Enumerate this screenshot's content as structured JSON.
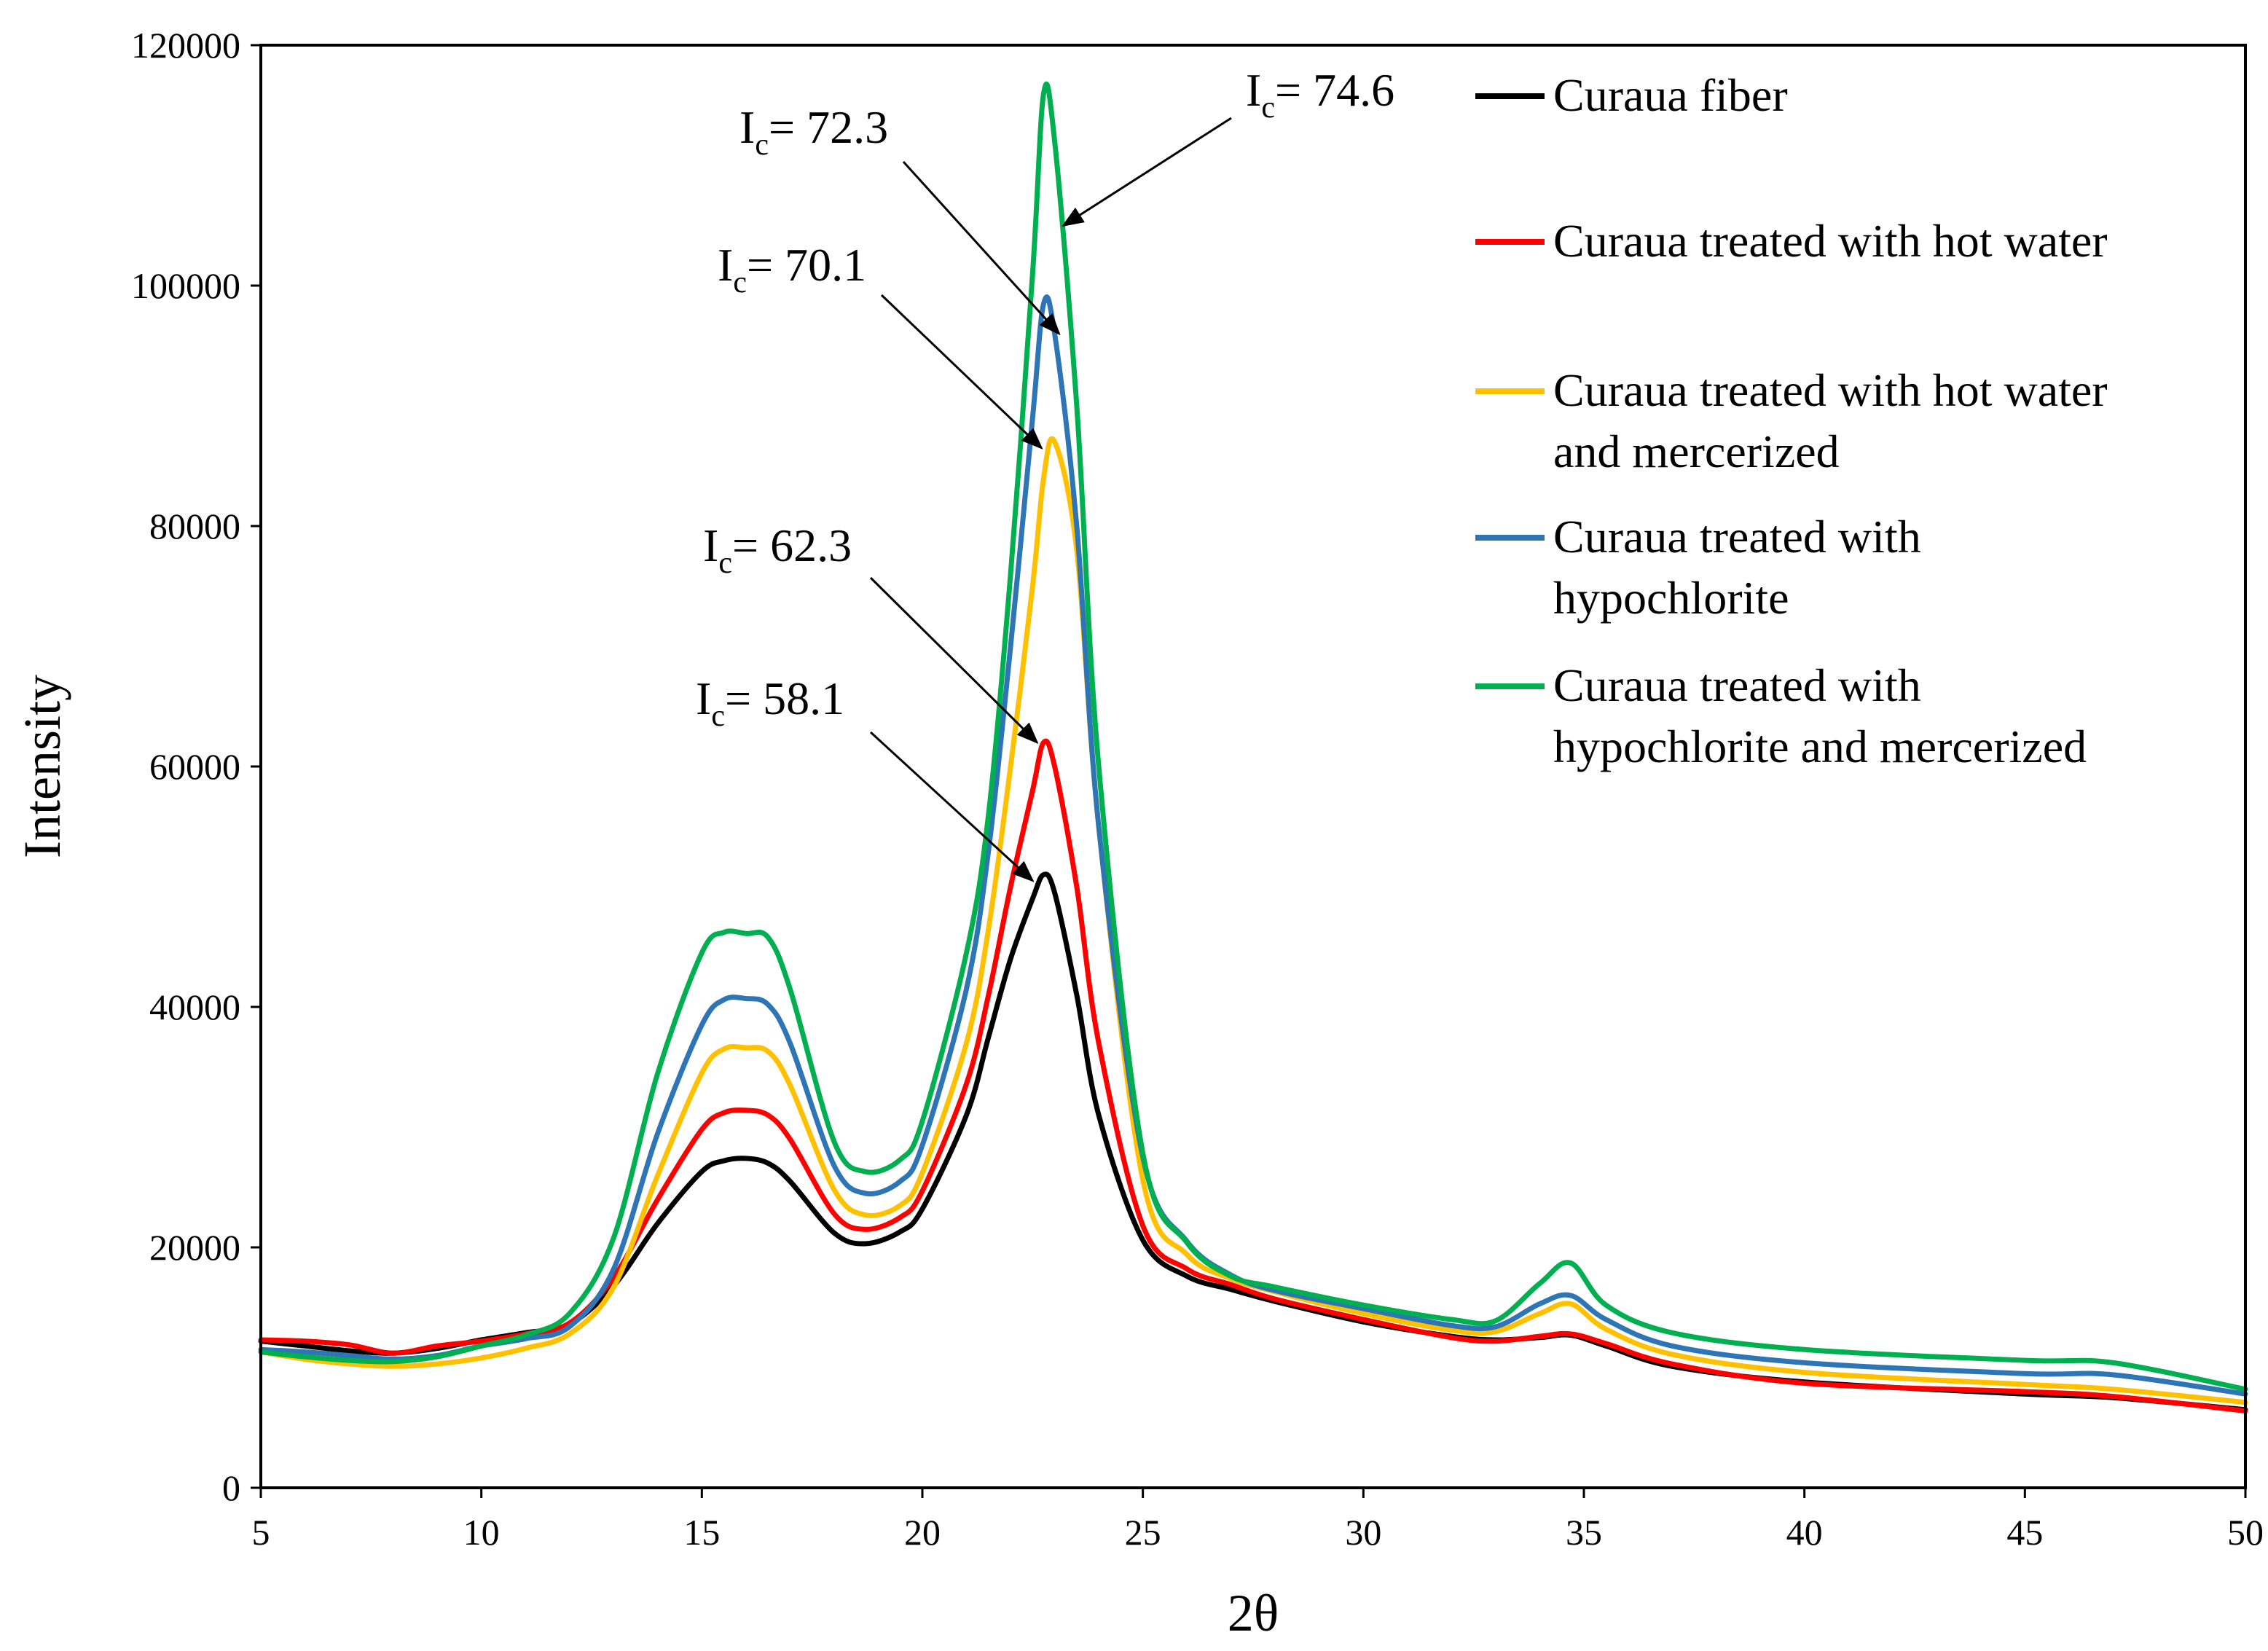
{
  "chart_data": {
    "type": "line",
    "title": "",
    "xlabel": "2θ",
    "ylabel": "Intensity",
    "xlim": [
      5,
      50
    ],
    "ylim": [
      0,
      120000
    ],
    "xticks": [
      5,
      10,
      15,
      20,
      25,
      30,
      35,
      40,
      45,
      50
    ],
    "yticks": [
      0,
      20000,
      40000,
      60000,
      80000,
      100000,
      120000
    ],
    "x": [
      5,
      6,
      7,
      8,
      9,
      10,
      11,
      12,
      13,
      14,
      15,
      15.5,
      16,
      16.5,
      17,
      18,
      18.7,
      19.5,
      20,
      21,
      21.5,
      22,
      22.5,
      22.75,
      23,
      23.5,
      24,
      25,
      26,
      27,
      28,
      30,
      32,
      33,
      34,
      34.7,
      35.5,
      37,
      40,
      45,
      47,
      50
    ],
    "series": [
      {
        "name": "Curaua fiber",
        "color": "#000000",
        "values": [
          12200,
          11800,
          11400,
          11200,
          11600,
          12300,
          12900,
          13600,
          16800,
          22000,
          26300,
          27200,
          27400,
          27000,
          25500,
          21200,
          20300,
          21300,
          23200,
          31000,
          37500,
          44000,
          49000,
          51000,
          49500,
          41000,
          31000,
          20600,
          17600,
          16500,
          15500,
          13800,
          12600,
          12300,
          12500,
          12700,
          11800,
          10100,
          8800,
          7800,
          7500,
          6500
        ]
      },
      {
        "name": "Curaua treated with hot water",
        "color": "#ff0000",
        "values": [
          12300,
          12200,
          11900,
          11200,
          11800,
          12200,
          12800,
          13700,
          17500,
          24000,
          29800,
          31200,
          31400,
          31000,
          29000,
          22800,
          21500,
          22500,
          24700,
          33600,
          41000,
          50000,
          58000,
          62000,
          60000,
          50000,
          37000,
          21800,
          18200,
          16900,
          15700,
          14000,
          12500,
          12200,
          12600,
          12800,
          12000,
          10300,
          8700,
          8000,
          7600,
          6400
        ]
      },
      {
        "name": "Curaua treated with hot water and mercerized",
        "color": "#ffc000",
        "values": [
          11300,
          10700,
          10300,
          10100,
          10300,
          10800,
          11600,
          12800,
          16700,
          26000,
          34500,
          36500,
          36600,
          36300,
          33500,
          24800,
          22700,
          23500,
          26200,
          37000,
          46500,
          60000,
          75000,
          84000,
          87000,
          78000,
          55000,
          25600,
          19400,
          17400,
          16300,
          14500,
          13100,
          13000,
          14500,
          15300,
          13200,
          11100,
          9600,
          8600,
          8200,
          7100
        ]
      },
      {
        "name": "Curaua treated with hypochlorite",
        "color": "#2e75b6",
        "values": [
          11500,
          11300,
          11000,
          10700,
          11000,
          11800,
          12400,
          13400,
          18200,
          29500,
          38500,
          40600,
          40700,
          40200,
          37000,
          26800,
          24500,
          25500,
          28500,
          41500,
          53000,
          70000,
          89000,
          98500,
          96000,
          80000,
          55000,
          27500,
          20500,
          17700,
          16400,
          14900,
          13500,
          13400,
          15300,
          16000,
          14000,
          11800,
          10400,
          9500,
          9400,
          7800
        ]
      },
      {
        "name": "Curaua treated with hypochlorite and mercerized",
        "color": "#00b050",
        "values": [
          11300,
          10900,
          10600,
          10500,
          10900,
          11800,
          12700,
          14500,
          20800,
          34500,
          44500,
          46200,
          46100,
          45800,
          41500,
          28800,
          26300,
          27300,
          30500,
          44500,
          56000,
          76000,
          101000,
          116000,
          112000,
          90000,
          60000,
          27800,
          20400,
          17600,
          16700,
          15200,
          14000,
          13900,
          17000,
          18700,
          15200,
          12900,
          11500,
          10600,
          10400,
          8200
        ]
      }
    ],
    "legend": {
      "placement": "top-right",
      "entries": [
        [
          "Curaua fiber"
        ],
        [
          "Curaua treated with hot water"
        ],
        [
          "Curaua treated with hot water",
          "and mercerized"
        ],
        [
          "Curaua treated with",
          "hypochlorite"
        ],
        [
          "Curaua treated with",
          "hypochlorite and mercerized"
        ]
      ]
    },
    "annotations": [
      {
        "main": "I",
        "sub": "c",
        "value": "= 58.1",
        "series": "Curaua fiber",
        "point": [
          22.5,
          50500
        ]
      },
      {
        "main": "I",
        "sub": "c",
        "value": "= 62.3",
        "series": "Curaua treated with hot water",
        "point": [
          22.6,
          62000
        ]
      },
      {
        "main": "I",
        "sub": "c",
        "value": "= 70.1",
        "series": "Curaua treated with hot water and mercerized",
        "point": [
          22.7,
          86500
        ]
      },
      {
        "main": "I",
        "sub": "c",
        "value": "= 72.3",
        "series": "Curaua treated with hypochlorite",
        "point": [
          23.1,
          96000
        ]
      },
      {
        "main": "I",
        "sub": "c",
        "value": "= 74.6",
        "series": "Curaua treated with hypochlorite and mercerized",
        "point": [
          23.2,
          105000
        ]
      }
    ]
  }
}
